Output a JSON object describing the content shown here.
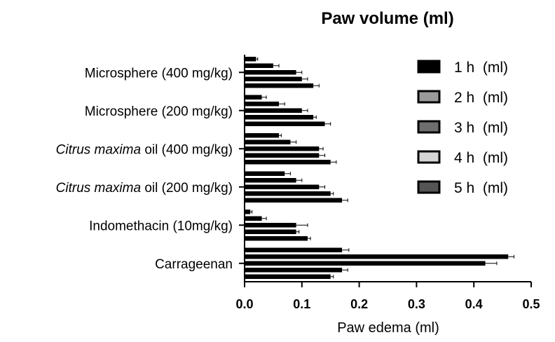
{
  "chart_data": {
    "type": "bar",
    "orientation": "horizontal",
    "title": "Paw volume (ml)",
    "xlabel": "Paw edema (ml)",
    "ylabel": "",
    "xlim": [
      0,
      0.5
    ],
    "xticks": [
      "0.0",
      "0.1",
      "0.2",
      "0.3",
      "0.4",
      "0.5"
    ],
    "grid": false,
    "legend_position": "right",
    "categories": [
      {
        "pre": "",
        "italic": "",
        "post": "Microsphere (400 mg/kg)"
      },
      {
        "pre": "",
        "italic": "",
        "post": "Microsphere (200 mg/kg)"
      },
      {
        "pre": "",
        "italic": "Citrus maxima",
        "post": " oil (400 mg/kg)"
      },
      {
        "pre": "",
        "italic": "Citrus maxima",
        "post": " oil (200 mg/kg)"
      },
      {
        "pre": "",
        "italic": "",
        "post": "Indomethacin (10mg/kg)"
      },
      {
        "pre": "",
        "italic": "",
        "post": "Carrageenan"
      }
    ],
    "series": [
      {
        "name": "1 h  (ml)",
        "legend_fill": "#000000",
        "values": [
          0.02,
          0.03,
          0.06,
          0.07,
          0.01,
          0.17
        ],
        "errors": [
          0.003,
          0.008,
          0.004,
          0.01,
          0.003,
          0.012
        ]
      },
      {
        "name": "2 h  (ml)",
        "legend_fill": "#9a9a9a",
        "values": [
          0.05,
          0.06,
          0.08,
          0.09,
          0.03,
          0.46
        ],
        "errors": [
          0.01,
          0.01,
          0.01,
          0.01,
          0.008,
          0.01
        ]
      },
      {
        "name": "3 h  (ml)",
        "legend_fill": "#6e6e6e",
        "values": [
          0.09,
          0.1,
          0.13,
          0.13,
          0.09,
          0.42
        ],
        "errors": [
          0.01,
          0.01,
          0.007,
          0.01,
          0.02,
          0.02
        ]
      },
      {
        "name": "4 h  (ml)",
        "legend_fill": "#d4d4d4",
        "values": [
          0.1,
          0.12,
          0.13,
          0.15,
          0.09,
          0.17
        ],
        "errors": [
          0.01,
          0.005,
          0.01,
          0.005,
          0.005,
          0.01
        ]
      },
      {
        "name": "5 h  (ml)",
        "legend_fill": "#555555",
        "values": [
          0.12,
          0.14,
          0.15,
          0.17,
          0.11,
          0.15
        ],
        "errors": [
          0.01,
          0.01,
          0.01,
          0.01,
          0.005,
          0.005
        ]
      }
    ]
  }
}
